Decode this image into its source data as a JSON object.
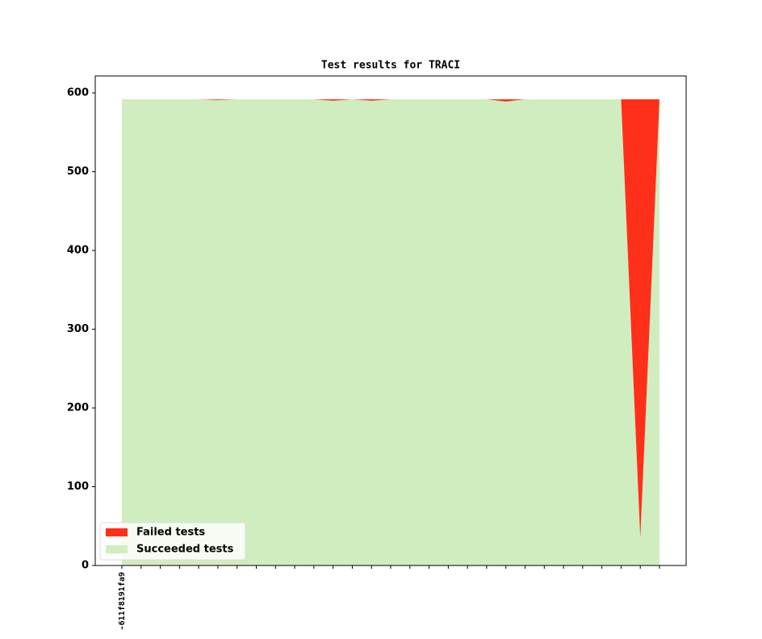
{
  "chart_data": {
    "type": "stacked_area",
    "title": "Test results for TRACI",
    "categories": [
      "-611f8191fa9",
      null,
      null,
      null,
      null,
      null,
      null,
      null,
      null,
      null,
      null,
      null,
      null,
      null,
      null,
      null,
      null,
      null,
      null,
      null,
      null,
      null,
      null,
      null,
      null,
      null,
      null,
      null,
      null
    ],
    "series": [
      {
        "name": "Failed tests",
        "color": "#ff3019",
        "values": [
          0,
          0,
          0,
          0,
          0,
          1,
          0,
          0,
          0,
          0,
          0,
          2,
          0,
          2,
          0,
          0,
          0,
          0,
          0,
          0,
          3,
          0,
          0,
          0,
          0,
          0,
          0,
          557,
          0
        ]
      },
      {
        "name": "Succeeded tests",
        "color": "#d0edc0",
        "values": [
          592,
          592,
          592,
          592,
          592,
          591,
          592,
          592,
          592,
          592,
          592,
          590,
          592,
          590,
          592,
          592,
          592,
          592,
          592,
          592,
          589,
          592,
          592,
          592,
          592,
          592,
          592,
          35,
          592
        ]
      }
    ],
    "stack_order": [
      "Succeeded tests",
      "Failed tests"
    ],
    "ylim": [
      0,
      621.6
    ],
    "yticks": [
      0,
      100,
      200,
      300,
      400,
      500,
      600
    ],
    "legend": "lower left"
  }
}
